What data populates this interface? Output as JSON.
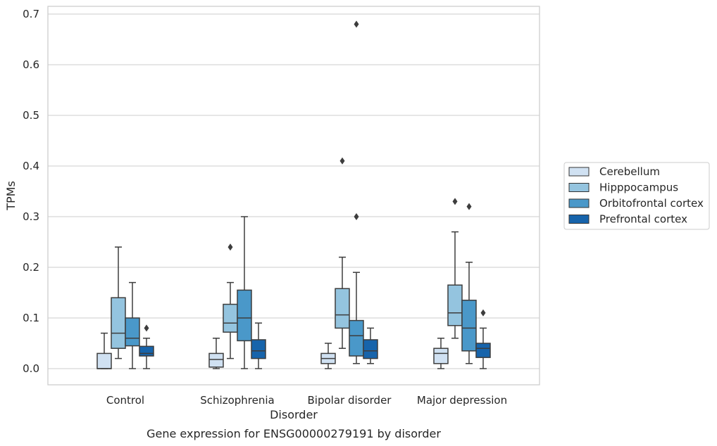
{
  "caption": "Gene expression for ENSG00000279191 by disorder",
  "chart_data": {
    "type": "box",
    "title": "",
    "xlabel": "Disorder",
    "ylabel": "TPMs",
    "ylim": [
      -0.033,
      0.715
    ],
    "yticks": [
      0.0,
      0.1,
      0.2,
      0.3,
      0.4,
      0.5,
      0.6,
      0.7
    ],
    "ytick_labels": [
      "0.0",
      "0.1",
      "0.2",
      "0.3",
      "0.4",
      "0.5",
      "0.6",
      "0.7"
    ],
    "grid": "horizontal",
    "legend_position": "right",
    "categories": [
      "Control",
      "Schizophrenia",
      "Bipolar disorder",
      "Major depression"
    ],
    "series": [
      {
        "name": "Cerebellum",
        "color": "#d0e1f2",
        "boxes": [
          {
            "whislo": 0.0,
            "q1": 0.0,
            "med": 0.0,
            "q3": 0.03,
            "whishi": 0.07,
            "fliers": []
          },
          {
            "whislo": 0.0,
            "q1": 0.003,
            "med": 0.018,
            "q3": 0.03,
            "whishi": 0.06,
            "fliers": []
          },
          {
            "whislo": 0.0,
            "q1": 0.01,
            "med": 0.02,
            "q3": 0.03,
            "whishi": 0.05,
            "fliers": []
          },
          {
            "whislo": 0.0,
            "q1": 0.01,
            "med": 0.03,
            "q3": 0.04,
            "whishi": 0.06,
            "fliers": []
          }
        ]
      },
      {
        "name": "Hipppocampus",
        "color": "#94c4df",
        "boxes": [
          {
            "whislo": 0.02,
            "q1": 0.04,
            "med": 0.07,
            "q3": 0.14,
            "whishi": 0.24,
            "fliers": []
          },
          {
            "whislo": 0.02,
            "q1": 0.072,
            "med": 0.09,
            "q3": 0.127,
            "whishi": 0.17,
            "fliers": [
              0.24
            ]
          },
          {
            "whislo": 0.04,
            "q1": 0.08,
            "med": 0.106,
            "q3": 0.158,
            "whishi": 0.22,
            "fliers": [
              0.41
            ]
          },
          {
            "whislo": 0.06,
            "q1": 0.085,
            "med": 0.11,
            "q3": 0.165,
            "whishi": 0.27,
            "fliers": [
              0.33
            ]
          }
        ]
      },
      {
        "name": "Orbitofrontal cortex",
        "color": "#4a98c9",
        "boxes": [
          {
            "whislo": 0.0,
            "q1": 0.045,
            "med": 0.06,
            "q3": 0.1,
            "whishi": 0.17,
            "fliers": []
          },
          {
            "whislo": 0.0,
            "q1": 0.055,
            "med": 0.1,
            "q3": 0.155,
            "whishi": 0.3,
            "fliers": []
          },
          {
            "whislo": 0.01,
            "q1": 0.025,
            "med": 0.065,
            "q3": 0.095,
            "whishi": 0.19,
            "fliers": [
              0.3,
              0.68
            ]
          },
          {
            "whislo": 0.01,
            "q1": 0.035,
            "med": 0.08,
            "q3": 0.135,
            "whishi": 0.21,
            "fliers": [
              0.32
            ]
          }
        ]
      },
      {
        "name": "Prefrontal cortex",
        "color": "#1764ab",
        "boxes": [
          {
            "whislo": 0.0,
            "q1": 0.025,
            "med": 0.03,
            "q3": 0.044,
            "whishi": 0.06,
            "fliers": [
              0.08
            ]
          },
          {
            "whislo": 0.0,
            "q1": 0.02,
            "med": 0.035,
            "q3": 0.057,
            "whishi": 0.09,
            "fliers": []
          },
          {
            "whislo": 0.01,
            "q1": 0.02,
            "med": 0.035,
            "q3": 0.057,
            "whishi": 0.08,
            "fliers": []
          },
          {
            "whislo": 0.0,
            "q1": 0.022,
            "med": 0.04,
            "q3": 0.05,
            "whishi": 0.08,
            "fliers": [
              0.11
            ]
          }
        ]
      }
    ]
  }
}
